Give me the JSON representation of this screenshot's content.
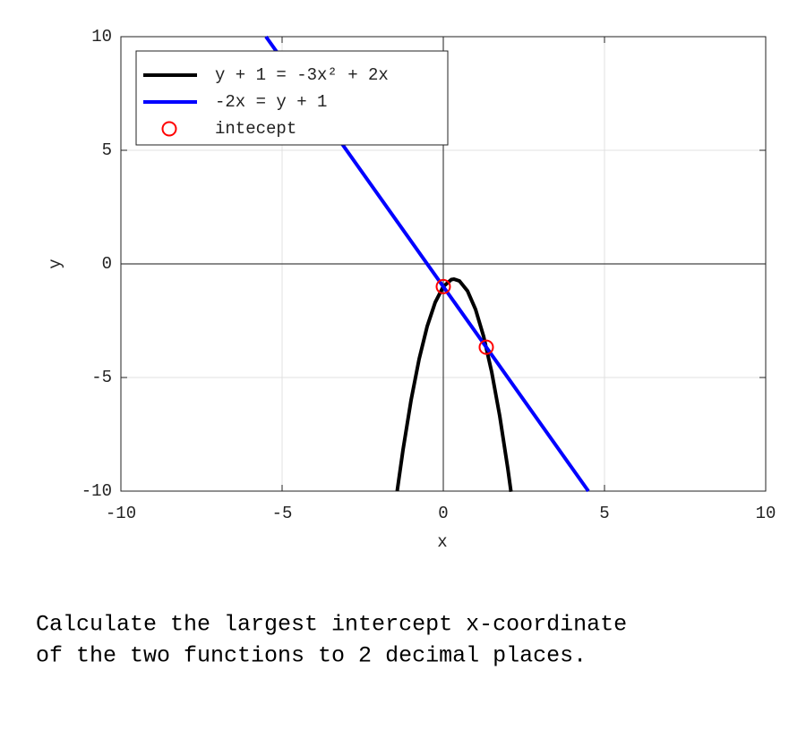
{
  "chart_data": {
    "type": "line",
    "xlabel": "x",
    "ylabel": "y",
    "xlim": [
      -10,
      10
    ],
    "ylim": [
      -10,
      10
    ],
    "xticks": [
      -10,
      -5,
      0,
      5,
      10
    ],
    "yticks": [
      -10,
      -5,
      0,
      5,
      10
    ],
    "grid": true,
    "legend": "upper-left",
    "series": [
      {
        "name": "y + 1 = -3x² + 2x",
        "color": "#000000",
        "mode": "line",
        "x": [
          -1.43,
          -1.25,
          -1,
          -0.75,
          -0.5,
          -0.25,
          0,
          0.25,
          0.33,
          0.5,
          0.75,
          1,
          1.25,
          1.5,
          1.75,
          2,
          2.1
        ],
        "y": [
          -9.99,
          -8.19,
          -6,
          -4.19,
          -2.75,
          -1.69,
          -1,
          -0.69,
          -0.67,
          -0.75,
          -1.19,
          -2,
          -3.19,
          -4.75,
          -6.69,
          -9,
          -10.03
        ]
      },
      {
        "name": "-2x = y + 1",
        "color": "#0000ff",
        "mode": "line",
        "x": [
          -5.5,
          4.5
        ],
        "y": [
          10,
          -10
        ]
      },
      {
        "name": "intecept",
        "color": "#ff0000",
        "mode": "marker",
        "x": [
          0,
          1.333
        ],
        "y": [
          -1,
          -3.667
        ]
      }
    ]
  },
  "question": {
    "lines": [
      "Calculate the largest intercept x-coordinate",
      "of the two functions to 2 decimal places."
    ]
  }
}
